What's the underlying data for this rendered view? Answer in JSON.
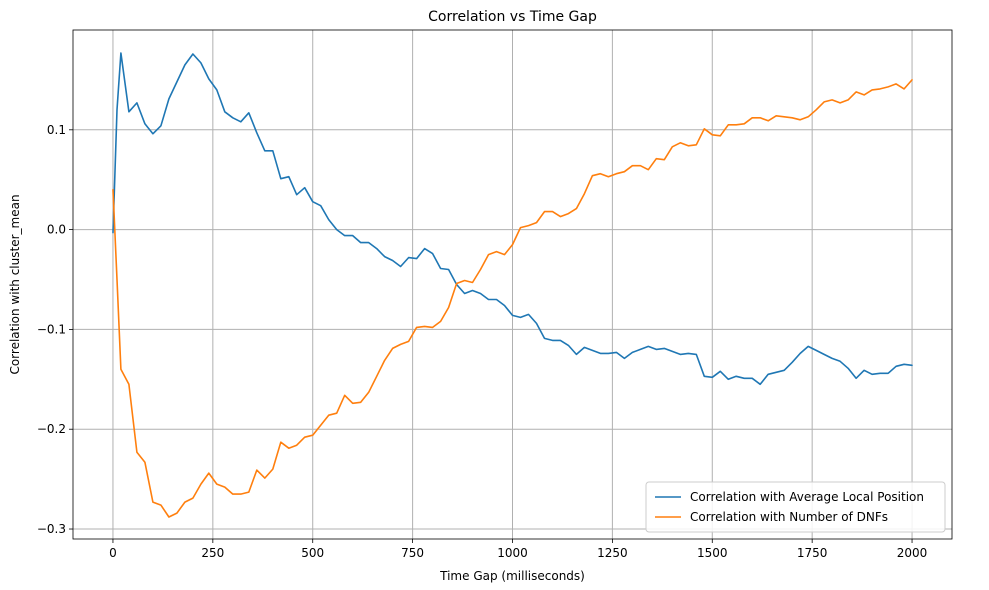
{
  "chart_data": {
    "type": "line",
    "title": "Correlation vs Time Gap",
    "xlabel": "Time Gap (milliseconds)",
    "ylabel": "Correlation with cluster_mean",
    "xlim": [
      -100,
      2100
    ],
    "ylim": [
      -0.31,
      0.2
    ],
    "xticks": [
      0,
      250,
      500,
      750,
      1000,
      1250,
      1500,
      1750,
      2000
    ],
    "xtick_labels": [
      "0",
      "250",
      "500",
      "750",
      "1000",
      "1250",
      "1500",
      "1750",
      "2000"
    ],
    "yticks": [
      -0.3,
      -0.2,
      -0.1,
      0.0,
      0.1
    ],
    "ytick_labels": [
      "−0.3",
      "−0.2",
      "−0.1",
      "0.0",
      "0.1"
    ],
    "grid": true,
    "legend_position": "lower-right",
    "x": [
      0,
      10,
      20,
      40,
      60,
      80,
      100,
      120,
      140,
      160,
      180,
      200,
      220,
      240,
      260,
      280,
      300,
      320,
      340,
      360,
      380,
      400,
      420,
      440,
      460,
      480,
      500,
      520,
      540,
      560,
      580,
      600,
      620,
      640,
      660,
      680,
      700,
      720,
      740,
      760,
      780,
      800,
      820,
      840,
      860,
      880,
      900,
      920,
      940,
      960,
      980,
      1000,
      1020,
      1040,
      1060,
      1080,
      1100,
      1120,
      1140,
      1160,
      1180,
      1200,
      1220,
      1240,
      1260,
      1280,
      1300,
      1320,
      1340,
      1360,
      1380,
      1400,
      1420,
      1440,
      1460,
      1480,
      1500,
      1520,
      1540,
      1560,
      1580,
      1600,
      1620,
      1640,
      1660,
      1680,
      1700,
      1720,
      1740,
      1760,
      1780,
      1800,
      1820,
      1840,
      1860,
      1880,
      1900,
      1920,
      1940,
      1960,
      1980,
      2000
    ],
    "series": [
      {
        "name": "Correlation with Average Local Position",
        "color": "#1f77b4",
        "values": [
          -0.003,
          0.12,
          0.177,
          0.118,
          0.127,
          0.106,
          0.096,
          0.104,
          0.131,
          0.148,
          0.165,
          0.176,
          0.167,
          0.151,
          0.14,
          0.118,
          0.112,
          0.108,
          0.117,
          0.097,
          0.079,
          0.079,
          0.051,
          0.053,
          0.035,
          0.042,
          0.028,
          0.024,
          0.01,
          0.0,
          -0.006,
          -0.006,
          -0.013,
          -0.013,
          -0.019,
          -0.027,
          -0.031,
          -0.037,
          -0.028,
          -0.029,
          -0.019,
          -0.024,
          -0.039,
          -0.04,
          -0.055,
          -0.064,
          -0.061,
          -0.064,
          -0.07,
          -0.07,
          -0.076,
          -0.086,
          -0.088,
          -0.085,
          -0.094,
          -0.109,
          -0.111,
          -0.111,
          -0.116,
          -0.125,
          -0.118,
          -0.121,
          -0.124,
          -0.124,
          -0.123,
          -0.129,
          -0.123,
          -0.12,
          -0.117,
          -0.12,
          -0.119,
          -0.122,
          -0.125,
          -0.124,
          -0.125,
          -0.147,
          -0.148,
          -0.142,
          -0.15,
          -0.147,
          -0.149,
          -0.149,
          -0.155,
          -0.145,
          -0.143,
          -0.141,
          -0.133,
          -0.124,
          -0.117,
          -0.121,
          -0.125,
          -0.129,
          -0.132,
          -0.139,
          -0.149,
          -0.141,
          -0.145,
          -0.144,
          -0.144,
          -0.137,
          -0.135,
          -0.136
        ]
      },
      {
        "name": "Correlation with Number of DNFs",
        "color": "#ff7f0e",
        "values": [
          0.04,
          -0.05,
          -0.14,
          -0.155,
          -0.223,
          -0.233,
          -0.273,
          -0.276,
          -0.288,
          -0.284,
          -0.273,
          -0.269,
          -0.255,
          -0.244,
          -0.255,
          -0.258,
          -0.265,
          -0.265,
          -0.263,
          -0.241,
          -0.249,
          -0.24,
          -0.213,
          -0.219,
          -0.216,
          -0.208,
          -0.206,
          -0.196,
          -0.186,
          -0.184,
          -0.166,
          -0.174,
          -0.173,
          -0.163,
          -0.147,
          -0.131,
          -0.119,
          -0.115,
          -0.112,
          -0.098,
          -0.097,
          -0.098,
          -0.092,
          -0.078,
          -0.054,
          -0.051,
          -0.053,
          -0.04,
          -0.025,
          -0.022,
          -0.025,
          -0.015,
          0.002,
          0.004,
          0.007,
          0.018,
          0.018,
          0.013,
          0.016,
          0.021,
          0.036,
          0.054,
          0.056,
          0.053,
          0.056,
          0.058,
          0.064,
          0.064,
          0.06,
          0.071,
          0.07,
          0.083,
          0.087,
          0.084,
          0.085,
          0.101,
          0.095,
          0.094,
          0.105,
          0.105,
          0.106,
          0.112,
          0.112,
          0.109,
          0.114,
          0.113,
          0.112,
          0.11,
          0.113,
          0.12,
          0.128,
          0.13,
          0.127,
          0.13,
          0.138,
          0.135,
          0.14,
          0.141,
          0.143,
          0.146,
          0.141,
          0.15
        ]
      }
    ]
  }
}
